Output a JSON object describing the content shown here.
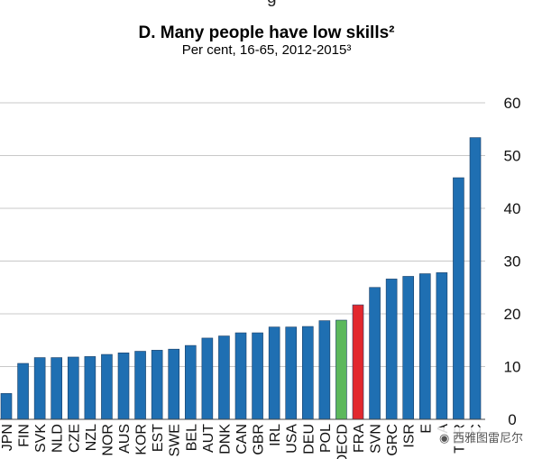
{
  "title": "D. Many people have low skills²",
  "subtitle": "Per cent, 16-65, 2012-2015³",
  "top_cut_text": "g",
  "watermark": "西雅图雷尼尔",
  "colors": {
    "bar": "#1f6fb2",
    "highlight_oecd": "#5cb85c",
    "highlight_fra": "#e2282e",
    "grid": "#c8c8c8"
  },
  "chart_data": {
    "type": "bar",
    "title": "D. Many people have low skills²",
    "subtitle": "Per cent, 16-65, 2012-2015³",
    "y_axis_position": "right",
    "grid": true,
    "ylim": [
      0,
      60
    ],
    "yticks": [
      0,
      10,
      20,
      30,
      40,
      50,
      60
    ],
    "categories": [
      "JPN",
      "FIN",
      "SVK",
      "NLD",
      "CZE",
      "NZL",
      "NOR",
      "AUS",
      "KOR",
      "EST",
      "SWE",
      "BEL",
      "AUT",
      "DNK",
      "CAN",
      "GBR",
      "IRL",
      "USA",
      "DEU",
      "POL",
      "OECD",
      "FRA",
      "SVN",
      "GRC",
      "ISR",
      "ESP",
      "ITA",
      "TUR",
      "CHL"
    ],
    "tick_labels": [
      "JPN",
      "FIN",
      "SVK",
      "NLD",
      "CZE",
      "NZL",
      "NOR",
      "AUS",
      "KOR",
      "EST",
      "SWE",
      "BEL",
      "AUT",
      "DNK",
      "CAN",
      "GBR",
      "IRL",
      "USA",
      "DEU",
      "POL",
      "OECD",
      "FRA",
      "SVN",
      "GRC",
      "ISR",
      "E",
      "A",
      "TUR",
      "C"
    ],
    "values": [
      4.9,
      10.6,
      11.7,
      11.7,
      11.8,
      11.9,
      12.3,
      12.6,
      12.9,
      13.1,
      13.3,
      14.0,
      15.4,
      15.8,
      16.4,
      16.4,
      17.5,
      17.5,
      17.6,
      18.7,
      18.8,
      21.7,
      25.0,
      26.6,
      27.1,
      27.6,
      27.8,
      45.8,
      53.4
    ],
    "highlight": {
      "OECD": "green",
      "FRA": "red"
    }
  }
}
